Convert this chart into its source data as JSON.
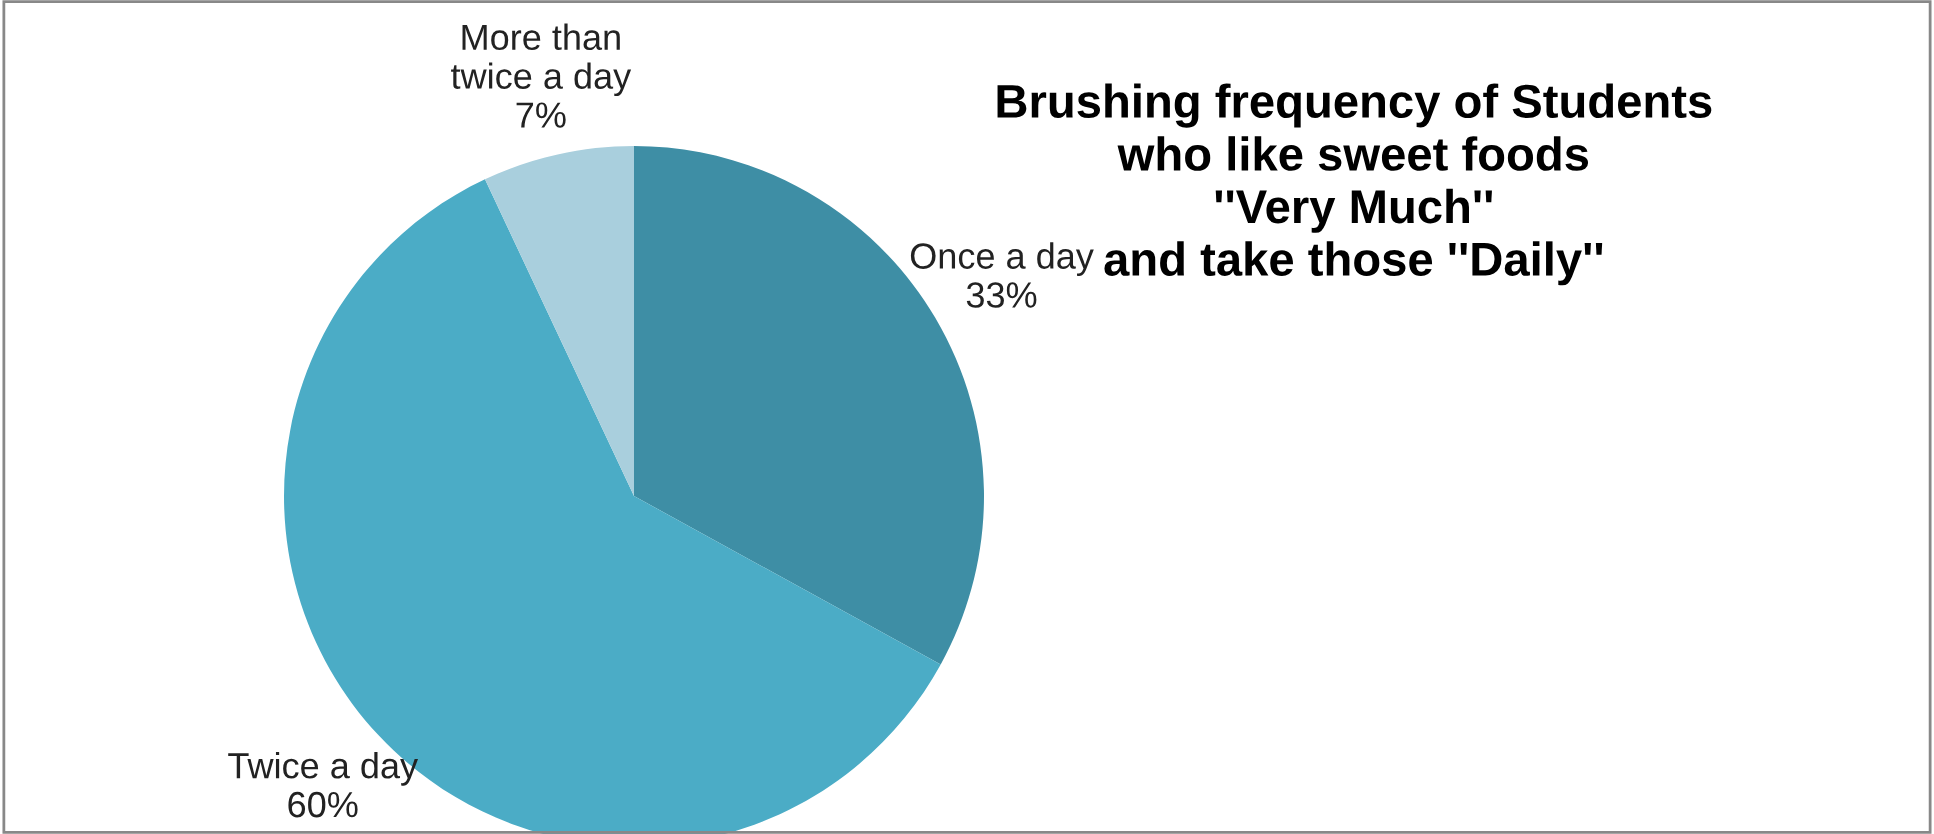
{
  "chart_data": {
    "type": "pie",
    "title": "Brushing frequency of Students\nwho like sweet foods\n''Very Much''\nand take those ''Daily''",
    "categories": [
      "Once a day",
      "Twice a day",
      "More than\ntwice a day"
    ],
    "values": [
      33,
      60,
      7
    ],
    "colors": [
      "#3e8ea5",
      "#4bacc6",
      "#a9cfdd"
    ],
    "value_labels": [
      "33%",
      "60%",
      "7%"
    ],
    "legend": false
  }
}
